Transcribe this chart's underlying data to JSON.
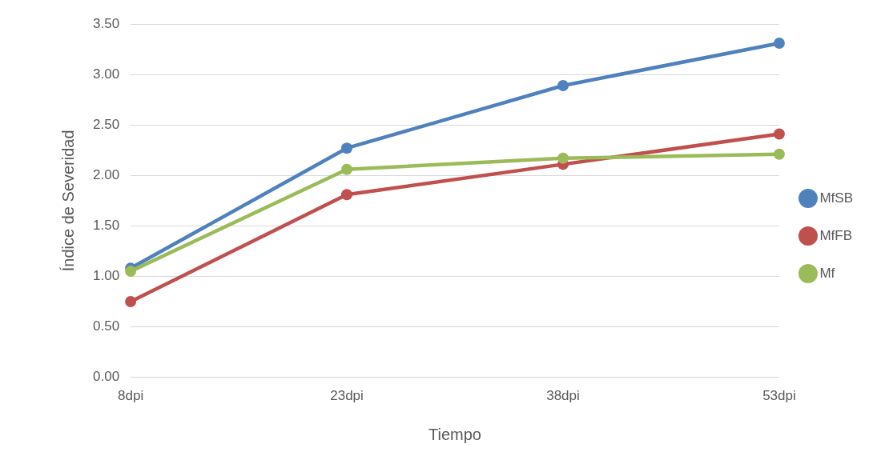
{
  "chart_data": {
    "type": "line",
    "xlabel": "Tiempo",
    "ylabel": "Índice de Severidad",
    "categories": [
      "8dpi",
      "23dpi",
      "38dpi",
      "53dpi"
    ],
    "series": [
      {
        "name": "MfSB",
        "color": "#4f81bd",
        "values": [
          1.08,
          2.27,
          2.89,
          3.31
        ]
      },
      {
        "name": "MfFB",
        "color": "#c0504d",
        "values": [
          0.75,
          1.81,
          2.11,
          2.41
        ]
      },
      {
        "name": "Mf",
        "color": "#9bbb59",
        "values": [
          1.05,
          2.06,
          2.17,
          2.21
        ]
      }
    ],
    "ylim": [
      0,
      3.5
    ],
    "yticks": [
      {
        "value": 0,
        "label": "0.00"
      },
      {
        "value": 0.5,
        "label": "0.50"
      },
      {
        "value": 1,
        "label": "1.00"
      },
      {
        "value": 1.5,
        "label": "1.50"
      },
      {
        "value": 2,
        "label": "2.00"
      },
      {
        "value": 2.5,
        "label": "2.50"
      },
      {
        "value": 3,
        "label": "3.00"
      },
      {
        "value": 3.5,
        "label": "3.50"
      }
    ],
    "grid": "y",
    "legend": "right",
    "marker": "circle",
    "line_style": "solid"
  }
}
